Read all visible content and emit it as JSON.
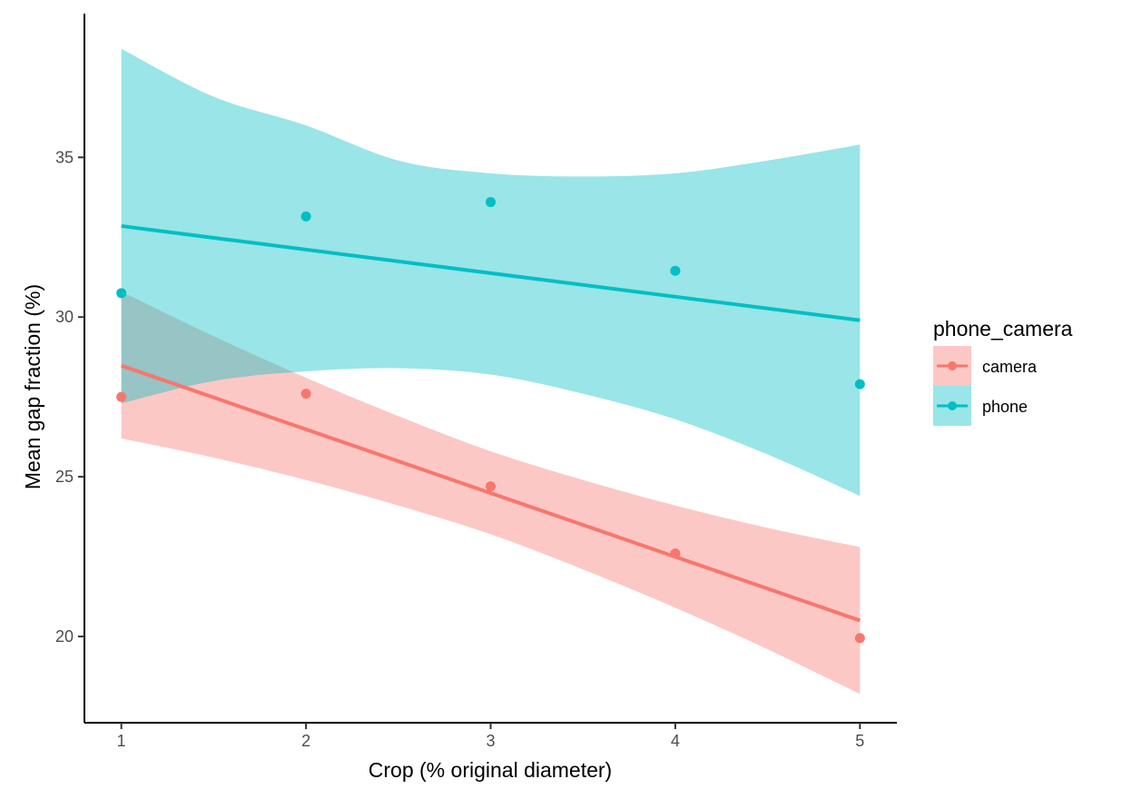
{
  "chart_data": {
    "type": "scatter",
    "xlabel": "Crop (% original diameter)",
    "ylabel": "Mean gap fraction (%)",
    "xlim": [
      0.8,
      5.2
    ],
    "ylim": [
      17.3,
      39.5
    ],
    "x_ticks": [
      1,
      2,
      3,
      4,
      5
    ],
    "y_ticks": [
      20,
      25,
      30,
      35
    ],
    "grid": false,
    "legend_position": "right",
    "legend_title": "phone_camera",
    "series": [
      {
        "name": "camera",
        "color": "#F8766D",
        "x": [
          1,
          2,
          3,
          4,
          5
        ],
        "y": [
          27.5,
          27.6,
          24.7,
          22.6,
          19.95
        ],
        "fit": {
          "x": [
            1,
            5
          ],
          "y": [
            28.48,
            20.5
          ]
        },
        "ci_band": {
          "x": [
            1,
            1.5,
            2,
            2.5,
            3,
            3.5,
            4,
            4.5,
            5
          ],
          "lower": [
            26.2,
            25.6,
            24.9,
            24.1,
            23.2,
            22.1,
            20.9,
            19.6,
            18.2
          ],
          "upper": [
            30.8,
            29.4,
            28.1,
            26.9,
            25.8,
            24.9,
            24.1,
            23.4,
            22.8
          ]
        }
      },
      {
        "name": "phone",
        "color": "#00BFC4",
        "x": [
          1,
          2,
          3,
          4,
          5
        ],
        "y": [
          30.75,
          33.15,
          33.6,
          31.45,
          27.9
        ],
        "fit": {
          "x": [
            1,
            5
          ],
          "y": [
            32.85,
            29.9
          ]
        },
        "ci_band": {
          "x": [
            1,
            1.5,
            2,
            2.5,
            3,
            3.5,
            4,
            4.5,
            5
          ],
          "lower": [
            27.3,
            28.0,
            28.3,
            28.4,
            28.2,
            27.6,
            26.8,
            25.7,
            24.4
          ],
          "upper": [
            38.4,
            36.9,
            36.0,
            34.9,
            34.5,
            34.4,
            34.5,
            34.9,
            35.4
          ]
        }
      }
    ]
  }
}
